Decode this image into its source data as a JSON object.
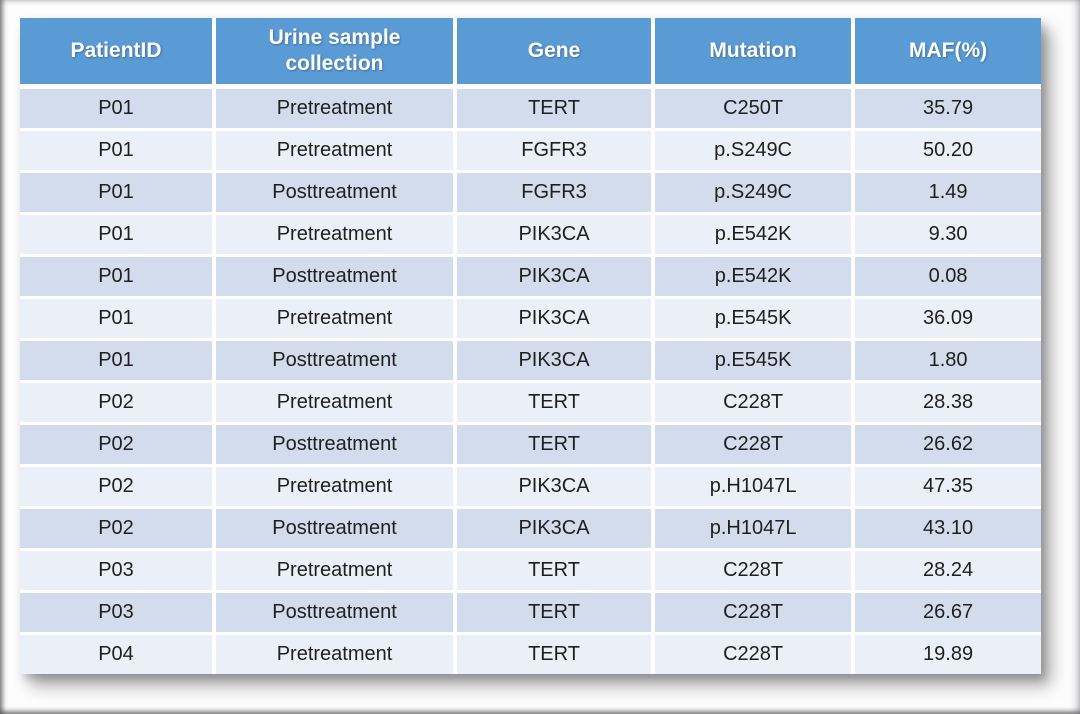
{
  "colors": {
    "header_bg": "#5B9BD5",
    "header_text": "#FFFFFF",
    "row_odd_bg": "#D2DCEC",
    "row_even_bg": "#EBEFF7",
    "cell_text": "#1F1F1F",
    "grid": "#FFFFFF"
  },
  "chart_data": {
    "type": "table",
    "columns": [
      "PatientID",
      "Urine sample collection",
      "Gene",
      "Mutation",
      "MAF(%)"
    ],
    "column_keys": [
      "patient-id",
      "collection",
      "gene",
      "mutation",
      "maf"
    ],
    "rows": [
      [
        "P01",
        "Pretreatment",
        "TERT",
        "C250T",
        "35.79"
      ],
      [
        "P01",
        "Pretreatment",
        "FGFR3",
        "p.S249C",
        "50.20"
      ],
      [
        "P01",
        "Posttreatment",
        "FGFR3",
        "p.S249C",
        "1.49"
      ],
      [
        "P01",
        "Pretreatment",
        "PIK3CA",
        "p.E542K",
        "9.30"
      ],
      [
        "P01",
        "Posttreatment",
        "PIK3CA",
        "p.E542K",
        "0.08"
      ],
      [
        "P01",
        "Pretreatment",
        "PIK3CA",
        "p.E545K",
        "36.09"
      ],
      [
        "P01",
        "Posttreatment",
        "PIK3CA",
        "p.E545K",
        "1.80"
      ],
      [
        "P02",
        "Pretreatment",
        "TERT",
        "C228T",
        "28.38"
      ],
      [
        "P02",
        "Posttreatment",
        "TERT",
        "C228T",
        "26.62"
      ],
      [
        "P02",
        "Pretreatment",
        "PIK3CA",
        "p.H1047L",
        "47.35"
      ],
      [
        "P02",
        "Posttreatment",
        "PIK3CA",
        "p.H1047L",
        "43.10"
      ],
      [
        "P03",
        "Pretreatment",
        "TERT",
        "C228T",
        "28.24"
      ],
      [
        "P03",
        "Posttreatment",
        "TERT",
        "C228T",
        "26.67"
      ],
      [
        "P04",
        "Pretreatment",
        "TERT",
        "C228T",
        "19.89"
      ]
    ]
  }
}
